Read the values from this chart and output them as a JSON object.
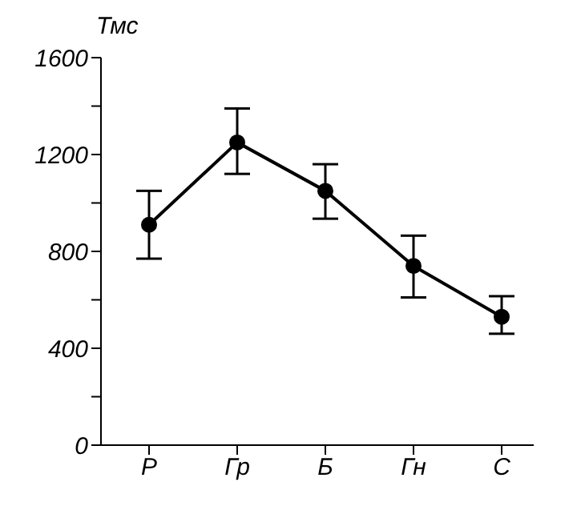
{
  "chart_data": {
    "type": "line",
    "ylabel": "Тмс",
    "categories": [
      "Р",
      "Гр",
      "Б",
      "Гн",
      "С"
    ],
    "series": [
      {
        "color": "#000000",
        "values": [
          910,
          1250,
          1050,
          740,
          530
        ],
        "errors": [
          [
            770,
            1050
          ],
          [
            1120,
            1390
          ],
          [
            935,
            1160
          ],
          [
            610,
            865
          ],
          [
            460,
            615
          ]
        ]
      }
    ],
    "ylim": [
      0,
      1600
    ],
    "yticks": [
      0,
      {
        "value": 200,
        "label": null
      },
      400,
      {
        "value": 600,
        "label": null
      },
      800,
      {
        "value": 1000,
        "label": null
      },
      1200,
      {
        "value": 1400,
        "label": null
      },
      1600
    ],
    "grid": false,
    "marker": "circle",
    "line_style": "solid"
  }
}
